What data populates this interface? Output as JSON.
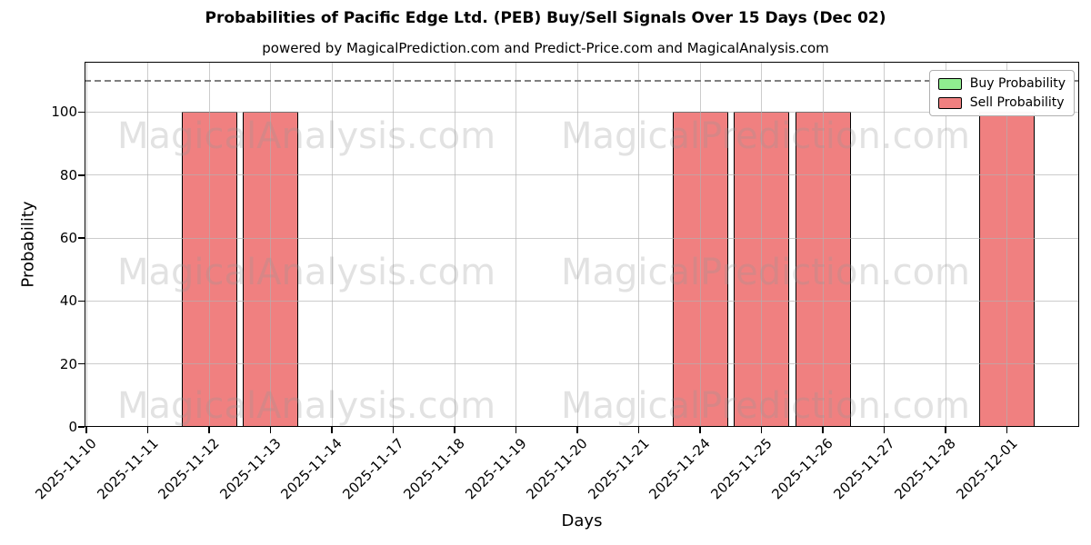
{
  "header": {
    "title": "Probabilities of Pacific Edge Ltd. (PEB) Buy/Sell Signals Over 15 Days (Dec 02)",
    "subtitle": "powered by MagicalPrediction.com and Predict-Price.com and MagicalAnalysis.com"
  },
  "chart_data": {
    "type": "bar",
    "title": "Probabilities of Pacific Edge Ltd. (PEB) Buy/Sell Signals Over 15 Days (Dec 02)",
    "xlabel": "Days",
    "ylabel": "Probability",
    "categories": [
      "2025-11-10",
      "2025-11-11",
      "2025-11-12",
      "2025-11-13",
      "2025-11-14",
      "2025-11-17",
      "2025-11-18",
      "2025-11-19",
      "2025-11-20",
      "2025-11-21",
      "2025-11-24",
      "2025-11-25",
      "2025-11-26",
      "2025-11-27",
      "2025-11-28",
      "2025-12-01"
    ],
    "series": [
      {
        "name": "Buy Probability",
        "color": "#90ee90",
        "values": [
          0,
          0,
          0,
          0,
          0,
          0,
          0,
          0,
          0,
          0,
          0,
          0,
          0,
          0,
          0,
          0
        ]
      },
      {
        "name": "Sell Probability",
        "color": "#f08080",
        "values": [
          0,
          0,
          100,
          100,
          0,
          0,
          0,
          0,
          0,
          0,
          100,
          100,
          100,
          0,
          0,
          100
        ]
      }
    ],
    "ylim": [
      0,
      116
    ],
    "yticks": [
      0,
      20,
      40,
      60,
      80,
      100
    ],
    "threshold_line": {
      "y": 110,
      "style": "dashed",
      "color": "#7f7f7f"
    },
    "grid": true,
    "grid_above_bars": true,
    "bar_edge_color": "#000000",
    "legend_position": "upper right",
    "watermarks": {
      "left_text": "MagicalAnalysis.com",
      "right_text": "MagicalPrediction.com",
      "rows": 3
    }
  },
  "legend": {
    "items": [
      {
        "label": "Buy Probability",
        "color": "#90ee90"
      },
      {
        "label": "Sell Probability",
        "color": "#f08080"
      }
    ]
  }
}
